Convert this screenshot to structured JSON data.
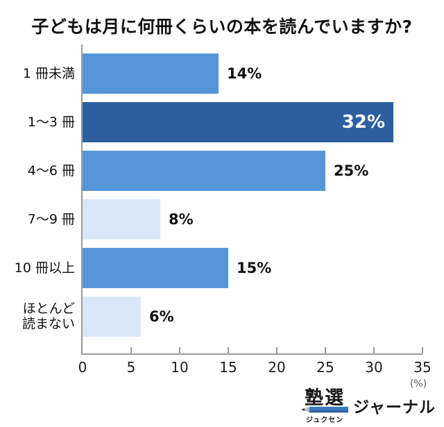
{
  "title": "子どもは月に何冊くらいの本を読んでいますか?",
  "chart_data": {
    "type": "bar",
    "orientation": "horizontal",
    "title": "子どもは月に何冊くらいの本を読んでいますか?",
    "categories": [
      "1 冊未満",
      "1〜3 冊",
      "4〜6 冊",
      "7〜9 冊",
      "10 冊以上",
      "ほとんど\n読まない"
    ],
    "values": [
      14,
      32,
      25,
      8,
      15,
      6
    ],
    "value_labels": [
      "14%",
      "32%",
      "25%",
      "8%",
      "15%",
      "6%"
    ],
    "bar_styles": [
      "medium",
      "dark",
      "medium",
      "light",
      "medium",
      "light"
    ],
    "value_label_inside": [
      false,
      true,
      false,
      false,
      false,
      false
    ],
    "xlim": [
      0,
      35
    ],
    "x_ticks": [
      "0",
      "5",
      "10",
      "15",
      "20",
      "25",
      "30",
      "35"
    ],
    "x_unit": "(%)",
    "xlabel": "",
    "ylabel": "",
    "grid": false,
    "legend": null,
    "colors": {
      "medium": "#5596d9",
      "dark": "#2d5f9e",
      "light": "#d9e8f8",
      "value_text": "#111111",
      "value_text_inside": "#ffffff",
      "axis": "#9b9b9b"
    }
  },
  "footer": {
    "brand": "塾選",
    "brand_reading": "ジュクセン",
    "brand_suffix": "ジャーナル",
    "pencil_body_color": "#3c78c2",
    "pencil_tip_color": "#bcbcbc",
    "pencil_point_color": "#3d3d3d"
  }
}
